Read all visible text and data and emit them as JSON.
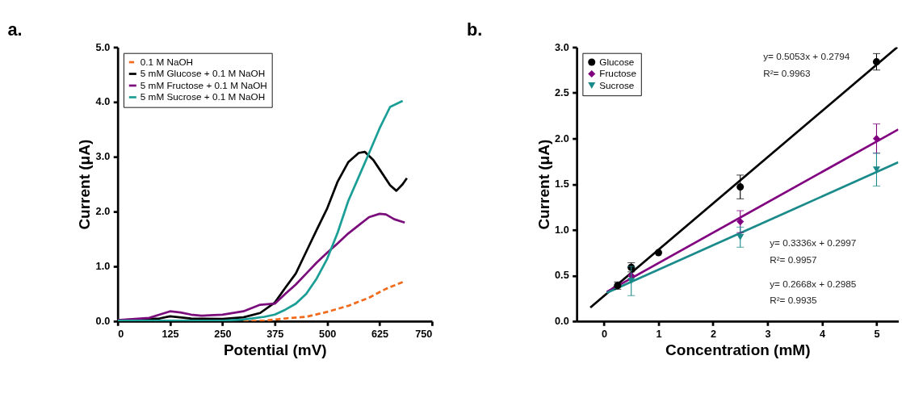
{
  "chart_data": [
    {
      "type": "line",
      "title": "a.",
      "xlabel": "Potential (mV)",
      "ylabel": "Current (μA)",
      "xlim": [
        0,
        750
      ],
      "xticks": [
        0,
        125,
        250,
        375,
        500,
        625,
        750
      ],
      "ylim": [
        0,
        5
      ],
      "yticks": [
        {
          "value": 0,
          "label": "0.0"
        },
        {
          "value": 1,
          "label": "1.0"
        },
        {
          "value": 2,
          "label": "2.0"
        },
        {
          "value": 3,
          "label": "3.0"
        },
        {
          "value": 4,
          "label": "4.0"
        },
        {
          "value": 5,
          "label": "5.0"
        }
      ],
      "grid": false,
      "legend": "top left",
      "marker": "none",
      "series": [
        {
          "name": "0.1 M NaOH",
          "color": "#f26b1d",
          "line_style": "dashed",
          "x": [
            300,
            350,
            400,
            450,
            500,
            550,
            600,
            640,
            685
          ],
          "values": [
            0,
            0.01,
            0.05,
            0.08,
            0.17,
            0.28,
            0.43,
            0.59,
            0.73
          ]
        },
        {
          "name": "5 mM Glucose + 0.1 M NaOH",
          "color": "#000000",
          "line_style": "solid",
          "x": [
            0,
            50,
            100,
            125,
            175,
            250,
            300,
            340,
            375,
            400,
            425,
            450,
            475,
            500,
            525,
            550,
            575,
            590,
            610,
            625,
            650,
            665,
            680,
            690
          ],
          "values": [
            0.02,
            0.03,
            0.05,
            0.09,
            0.05,
            0.04,
            0.07,
            0.15,
            0.34,
            0.61,
            0.87,
            1.27,
            1.67,
            2.06,
            2.55,
            2.9,
            3.07,
            3.09,
            2.94,
            2.77,
            2.48,
            2.38,
            2.5,
            2.61
          ]
        },
        {
          "name": "5 mM Fructose + 0.1 M NaOH",
          "color": "#7b0c7b",
          "line_style": "solid",
          "x": [
            0,
            75,
            100,
            125,
            150,
            175,
            200,
            250,
            300,
            340,
            375,
            400,
            425,
            450,
            475,
            500,
            525,
            550,
            575,
            600,
            625,
            640,
            660,
            685
          ],
          "values": [
            0.02,
            0.06,
            0.12,
            0.18,
            0.16,
            0.12,
            0.1,
            0.12,
            0.18,
            0.3,
            0.32,
            0.5,
            0.67,
            0.87,
            1.07,
            1.25,
            1.42,
            1.6,
            1.75,
            1.9,
            1.96,
            1.95,
            1.86,
            1.8
          ]
        },
        {
          "name": "5 mM Sucrose + 0.1 M NaOH",
          "color": "#1a9e96",
          "line_style": "solid",
          "x": [
            0,
            100,
            250,
            300,
            350,
            375,
            400,
            425,
            450,
            475,
            500,
            525,
            550,
            575,
            600,
            625,
            650,
            680
          ],
          "values": [
            0.01,
            0.01,
            0.01,
            0.03,
            0.08,
            0.12,
            0.21,
            0.32,
            0.5,
            0.78,
            1.14,
            1.62,
            2.19,
            2.63,
            3.07,
            3.52,
            3.91,
            4.02
          ]
        }
      ]
    },
    {
      "type": "scatter",
      "title": "b.",
      "xlabel": "Concentration (mM)",
      "ylabel": "Current (μA)",
      "xlim": [
        -0.5,
        5.4
      ],
      "xticks": [
        0,
        1,
        2,
        3,
        4,
        5
      ],
      "ylim": [
        0,
        3
      ],
      "yticks": [
        {
          "value": 0,
          "label": "0.0"
        },
        0.5,
        {
          "value": 1,
          "label": "1.0"
        },
        1.5,
        {
          "value": 2,
          "label": "2.0"
        },
        2.5,
        {
          "value": 3,
          "label": "3.0"
        }
      ],
      "grid": false,
      "legend": "top left",
      "series": [
        {
          "name": "Glucose",
          "color": "#000000",
          "marker": "circle",
          "x": [
            0.25,
            0.5,
            1,
            2.5,
            5
          ],
          "values": [
            0.39,
            0.59,
            0.75,
            1.47,
            2.84
          ],
          "errors": [
            0.04,
            0.05,
            null,
            0.13,
            0.09
          ]
        },
        {
          "name": "Fructose",
          "color": "#800080",
          "marker": "diamond",
          "x": [
            0.5,
            2.5,
            5
          ],
          "values": [
            0.5,
            1.09,
            2.0
          ],
          "errors": [
            null,
            0.12,
            0.16
          ]
        },
        {
          "name": "Sucrose",
          "color": "#1a8a8a",
          "marker": "triangle",
          "x": [
            0.5,
            2.5,
            5
          ],
          "values": [
            0.44,
            0.92,
            1.66
          ],
          "errors": [
            0.16,
            0.11,
            0.18
          ]
        },
        {
          "type": "line",
          "line_style": "solid",
          "color": "#000000",
          "x": [
            -0.25,
            5.38
          ],
          "values": [
            0.15,
            3.0
          ]
        },
        {
          "type": "line",
          "line_style": "solid",
          "color": "#800080",
          "x": [
            0.05,
            5.4
          ],
          "values": [
            0.32,
            2.1
          ]
        },
        {
          "type": "line",
          "line_style": "solid",
          "color": "#1a8a8a",
          "x": [
            0.05,
            5.4
          ],
          "values": [
            0.31,
            1.74
          ]
        }
      ],
      "annotations": [
        "y= 0.5053x + 0.2794",
        "R²= 0.9963",
        "y= 0.3336x + 0.2997",
        "R²= 0.9957",
        "y= 0.2668x + 0.2985",
        "R²= 0.9935"
      ]
    }
  ]
}
